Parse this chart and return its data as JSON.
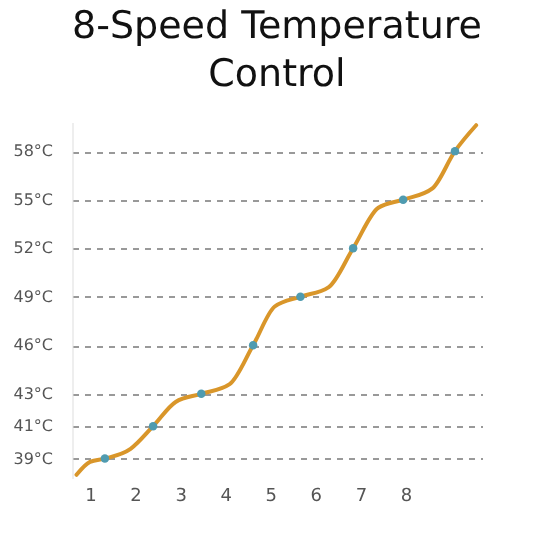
{
  "chart_data": {
    "type": "line",
    "title": "8-Speed Temperature Control",
    "series": [
      {
        "type": "line",
        "color": "#d9962a",
        "marker": "none",
        "x": [
          0.7,
          1.0,
          1.33,
          1.9,
          2.4,
          2.9,
          3.47,
          4.1,
          4.62,
          5.1,
          5.67,
          6.3,
          6.84,
          7.4,
          7.95,
          8.6,
          9.1,
          9.57
        ],
        "values": [
          38.0,
          38.8,
          39.0,
          39.6,
          41.0,
          42.5,
          43.0,
          43.6,
          46.0,
          48.4,
          49.0,
          49.6,
          52.0,
          54.5,
          55.0,
          55.7,
          58.0,
          59.6
        ]
      },
      {
        "type": "scatter",
        "color": "#4f9bb0",
        "marker": "circle",
        "x": [
          1.33,
          2.4,
          3.47,
          4.62,
          5.67,
          6.84,
          7.95,
          9.1
        ],
        "values": [
          39,
          41,
          43,
          46,
          49,
          52,
          55,
          58
        ]
      }
    ],
    "xlim": [
      0.6,
      9.7
    ],
    "xticks": [
      1,
      2,
      3,
      4,
      5,
      6,
      7,
      8
    ],
    "ylim": [
      37.8,
      59.8
    ],
    "yticks": [
      {
        "value": 39,
        "label": "39°C"
      },
      {
        "value": 41,
        "label": "41°C"
      },
      {
        "value": 43,
        "label": "43°C"
      },
      {
        "value": 46,
        "label": "46°C"
      },
      {
        "value": 49,
        "label": "49°C"
      },
      {
        "value": 52,
        "label": "52°C"
      },
      {
        "value": 55,
        "label": "55°C"
      },
      {
        "value": 58,
        "label": "58°C"
      }
    ],
    "grid": "y"
  }
}
